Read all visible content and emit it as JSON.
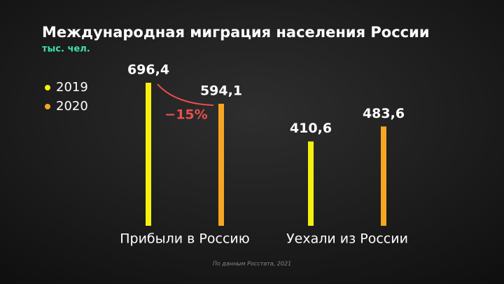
{
  "chart_data": {
    "type": "bar",
    "title": "Международная миграция населения России",
    "subtitle": "тыс. чел.",
    "categories": [
      "Прибыли в Россию",
      "Уехали из России"
    ],
    "series": [
      {
        "name": "2019",
        "color": "#f5f010",
        "values": [
          696.4,
          410.6
        ],
        "value_labels": [
          "696,4",
          "410,6"
        ]
      },
      {
        "name": "2020",
        "color": "#f5a623",
        "values": [
          594.1,
          483.6
        ],
        "value_labels": [
          "594,1",
          "483,6"
        ]
      }
    ],
    "annotation": "−15%",
    "source": "По данным Росстата, 2021"
  }
}
